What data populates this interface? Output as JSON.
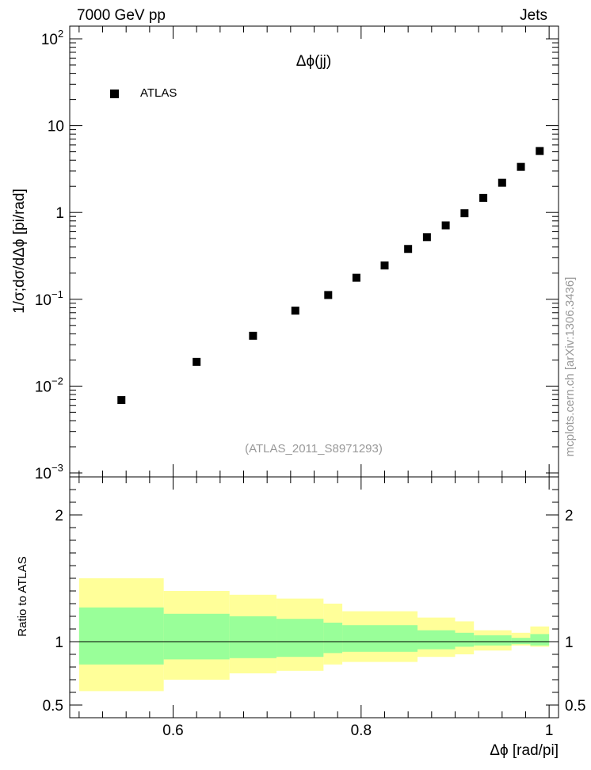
{
  "header": {
    "left": "7000 GeV pp",
    "right": "Jets"
  },
  "side_label": "mcplots.cern.ch [arXiv:1306.3436]",
  "chart_data": [
    {
      "type": "scatter",
      "title": "Δϕ(jj)",
      "subtitle": "(ATLAS_2011_S8971293)",
      "ylabel": "1/σ;dσ/dΔϕ [pi/rad]",
      "xlabel": "",
      "yscale": "log",
      "xlim": [
        0.49,
        1.01
      ],
      "ylim": [
        0.0009,
        140
      ],
      "y_ticks": [
        {
          "value": 100,
          "label": "10",
          "exp": "2"
        },
        {
          "value": 10,
          "label": "10",
          "exp": ""
        },
        {
          "value": 1,
          "label": "1",
          "exp": ""
        },
        {
          "value": 0.1,
          "label": "10",
          "exp": "−1"
        },
        {
          "value": 0.01,
          "label": "10",
          "exp": "−2"
        },
        {
          "value": 0.001,
          "label": "10",
          "exp": "−3"
        }
      ],
      "legend": {
        "position": "top-left",
        "entries": [
          "ATLAS"
        ]
      },
      "series": [
        {
          "name": "ATLAS",
          "color": "#000000",
          "marker": "square",
          "x": [
            0.545,
            0.625,
            0.685,
            0.73,
            0.765,
            0.795,
            0.825,
            0.85,
            0.87,
            0.89,
            0.91,
            0.93,
            0.95,
            0.97,
            0.99
          ],
          "y": [
            0.0069,
            0.019,
            0.038,
            0.074,
            0.112,
            0.177,
            0.245,
            0.38,
            0.52,
            0.71,
            0.98,
            1.47,
            2.2,
            3.35,
            5.1
          ]
        }
      ]
    },
    {
      "type": "area",
      "ylabel": "Ratio to ATLAS",
      "xlabel": "Δϕ [rad/pi]",
      "xlim": [
        0.49,
        1.01
      ],
      "ylim": [
        0.4,
        2.3
      ],
      "x_ticks": [
        {
          "value": 0.6,
          "label": "0.6"
        },
        {
          "value": 0.8,
          "label": "0.8"
        },
        {
          "value": 1.0,
          "label": "1"
        }
      ],
      "y_ticks": [
        {
          "value": 2,
          "label": "2"
        },
        {
          "value": 1,
          "label": "1"
        },
        {
          "value": 0.5,
          "label": "0.5"
        }
      ],
      "reference_line": 1,
      "bands": [
        {
          "color": "#ffff99",
          "bins": [
            [
              0.5,
              0.59,
              0.61,
              1.5
            ],
            [
              0.59,
              0.66,
              0.7,
              1.4
            ],
            [
              0.66,
              0.71,
              0.75,
              1.37
            ],
            [
              0.71,
              0.76,
              0.77,
              1.34
            ],
            [
              0.76,
              0.78,
              0.82,
              1.3
            ],
            [
              0.78,
              0.86,
              0.84,
              1.24
            ],
            [
              0.86,
              0.9,
              0.88,
              1.19
            ],
            [
              0.9,
              0.92,
              0.9,
              1.16
            ],
            [
              0.92,
              0.96,
              0.93,
              1.09
            ],
            [
              0.96,
              0.98,
              0.97,
              1.07
            ],
            [
              0.98,
              1.0,
              0.96,
              1.12
            ]
          ]
        },
        {
          "color": "#99ff99",
          "bins": [
            [
              0.5,
              0.59,
              0.82,
              1.27
            ],
            [
              0.59,
              0.66,
              0.86,
              1.22
            ],
            [
              0.66,
              0.71,
              0.87,
              1.2
            ],
            [
              0.71,
              0.76,
              0.88,
              1.18
            ],
            [
              0.76,
              0.78,
              0.91,
              1.15
            ],
            [
              0.78,
              0.86,
              0.92,
              1.13
            ],
            [
              0.86,
              0.9,
              0.94,
              1.09
            ],
            [
              0.9,
              0.92,
              0.96,
              1.07
            ],
            [
              0.92,
              0.96,
              0.97,
              1.05
            ],
            [
              0.96,
              0.98,
              0.98,
              1.03
            ],
            [
              0.98,
              1.0,
              0.97,
              1.06
            ]
          ]
        }
      ]
    }
  ]
}
